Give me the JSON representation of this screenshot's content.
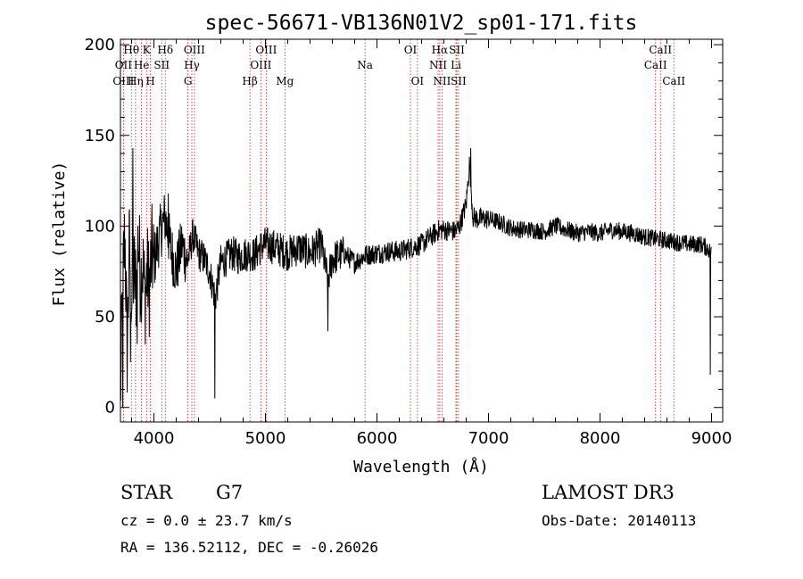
{
  "chart_data": {
    "type": "line",
    "title": "spec-56671-VB136N01V2_sp01-171.fits",
    "xlabel": "Wavelength (Å)",
    "ylabel": "Flux (relative)",
    "xlim": [
      3700,
      9100
    ],
    "ylim": [
      -8,
      203
    ],
    "xticks": [
      4000,
      5000,
      6000,
      7000,
      8000,
      9000
    ],
    "yticks": [
      0,
      50,
      100,
      150,
      200
    ],
    "grid": false,
    "line_color": "#000000",
    "marker_color": "#cc2222",
    "spectral_lines": [
      {
        "label": "Hθ",
        "wavelength": 3798,
        "row": 0
      },
      {
        "label": "OII",
        "wavelength": 3727,
        "row": 1
      },
      {
        "label": "OIII",
        "wavelength": 3727,
        "row": 2
      },
      {
        "label": "He",
        "wavelength": 3889,
        "row": 1
      },
      {
        "label": "Hη",
        "wavelength": 3835,
        "row": 2
      },
      {
        "label": "K",
        "wavelength": 3934,
        "row": 0
      },
      {
        "label": "H",
        "wavelength": 3969,
        "row": 2
      },
      {
        "label": "SII",
        "wavelength": 4070,
        "row": 1
      },
      {
        "label": "Hδ",
        "wavelength": 4102,
        "row": 0
      },
      {
        "label": "OIII",
        "wavelength": 4363,
        "row": 0
      },
      {
        "label": "Hγ",
        "wavelength": 4340,
        "row": 1
      },
      {
        "label": "G",
        "wavelength": 4305,
        "row": 2
      },
      {
        "label": "Hβ",
        "wavelength": 4861,
        "row": 2
      },
      {
        "label": "OIII",
        "wavelength": 5007,
        "row": 0
      },
      {
        "label": "OIII",
        "wavelength": 4959,
        "row": 1
      },
      {
        "label": "Mg",
        "wavelength": 5175,
        "row": 2
      },
      {
        "label": "Na",
        "wavelength": 5893,
        "row": 1
      },
      {
        "label": "OI",
        "wavelength": 6300,
        "row": 0
      },
      {
        "label": "OI",
        "wavelength": 6363,
        "row": 2
      },
      {
        "label": "Hα",
        "wavelength": 6563,
        "row": 0
      },
      {
        "label": "NII",
        "wavelength": 6548,
        "row": 1
      },
      {
        "label": "NII",
        "wavelength": 6583,
        "row": 2
      },
      {
        "label": "SII",
        "wavelength": 6716,
        "row": 0
      },
      {
        "label": "Li",
        "wavelength": 6708,
        "row": 1
      },
      {
        "label": "SII",
        "wavelength": 6731,
        "row": 2
      },
      {
        "label": "CaII",
        "wavelength": 8542,
        "row": 0
      },
      {
        "label": "CaII",
        "wavelength": 8498,
        "row": 1
      },
      {
        "label": "CaII",
        "wavelength": 8662,
        "row": 2
      }
    ],
    "spectrum_anchors": {
      "wavelength": [
        3700,
        3720,
        3740,
        3760,
        3780,
        3800,
        3820,
        3840,
        3860,
        3880,
        3900,
        3920,
        3940,
        3960,
        3980,
        4000,
        4050,
        4100,
        4150,
        4200,
        4250,
        4300,
        4350,
        4400,
        4450,
        4500,
        4550,
        4600,
        4650,
        4700,
        4750,
        4800,
        4850,
        4900,
        4950,
        5000,
        5100,
        5200,
        5300,
        5400,
        5500,
        5560,
        5600,
        5700,
        5800,
        5900,
        6000,
        6100,
        6200,
        6300,
        6400,
        6500,
        6560,
        6600,
        6700,
        6740,
        6800,
        6830,
        6860,
        6900,
        7000,
        7100,
        7200,
        7300,
        7400,
        7500,
        7600,
        7700,
        7800,
        7900,
        8000,
        8100,
        8200,
        8300,
        8400,
        8500,
        8600,
        8700,
        8800,
        8900,
        8960,
        9000
      ],
      "flux": [
        5,
        70,
        95,
        30,
        90,
        60,
        75,
        65,
        95,
        70,
        80,
        60,
        75,
        65,
        85,
        80,
        95,
        105,
        88,
        75,
        90,
        80,
        95,
        85,
        82,
        75,
        60,
        80,
        82,
        85,
        83,
        84,
        85,
        84,
        88,
        90,
        88,
        85,
        88,
        85,
        90,
        70,
        82,
        85,
        80,
        84,
        85,
        86,
        86,
        88,
        90,
        95,
        98,
        98,
        97,
        100,
        112,
        135,
        105,
        104,
        104,
        102,
        99,
        98,
        98,
        97,
        100,
        98,
        96,
        97,
        96,
        98,
        97,
        96,
        94,
        93,
        92,
        91,
        90,
        90,
        88,
        85
      ]
    },
    "spikes": [
      {
        "wavelength": 3720,
        "flux": 0
      },
      {
        "wavelength": 3790,
        "flux": 25
      },
      {
        "wavelength": 3810,
        "flux": 143
      },
      {
        "wavelength": 3850,
        "flux": 35
      },
      {
        "wavelength": 4130,
        "flux": 118
      },
      {
        "wavelength": 4545,
        "flux": 5
      },
      {
        "wavelength": 5560,
        "flux": 42
      },
      {
        "wavelength": 6840,
        "flux": 143
      },
      {
        "wavelength": 8990,
        "flux": 18
      }
    ]
  },
  "info": {
    "object_class": "STAR",
    "subclass": "G7",
    "survey": "LAMOST DR3",
    "redshift_text": "cz = 0.0 ± 23.7 km/s",
    "obs_date_text": "Obs-Date: 20140113",
    "coords_text": "RA = 136.52112, DEC =  -0.26026"
  }
}
